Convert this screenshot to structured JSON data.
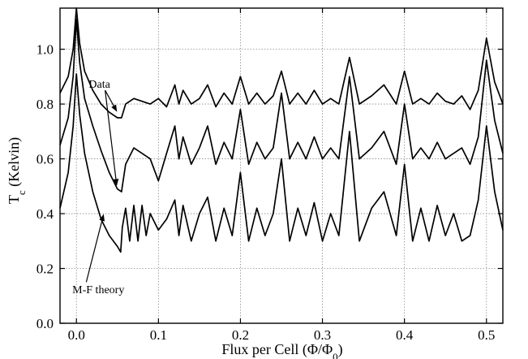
{
  "chart_data": {
    "type": "line",
    "xlabel_main": "Flux per Cell (",
    "xlabel_phi": "Φ/Φ",
    "xlabel_sub": "0",
    "xlabel_close": ")",
    "ylabel_main": "T",
    "ylabel_sub": "c",
    "ylabel_rest": " (Kelvin)",
    "xlim": [
      -0.02,
      0.52
    ],
    "ylim": [
      0.0,
      1.15
    ],
    "grid": true,
    "x_ticks": [
      {
        "value": 0.0,
        "label": "0.0"
      },
      {
        "value": 0.1,
        "label": "0.1"
      },
      {
        "value": 0.2,
        "label": "0.2"
      },
      {
        "value": 0.3,
        "label": "0.3"
      },
      {
        "value": 0.4,
        "label": "0.4"
      },
      {
        "value": 0.5,
        "label": "0.5"
      }
    ],
    "y_ticks": [
      {
        "value": 0.0,
        "label": "0.0"
      },
      {
        "value": 0.2,
        "label": "0.2"
      },
      {
        "value": 0.4,
        "label": "0.4"
      },
      {
        "value": 0.6,
        "label": "0.6"
      },
      {
        "value": 0.8,
        "label": "0.8"
      },
      {
        "value": 1.0,
        "label": "1.0"
      }
    ],
    "series": [
      {
        "peak": 1.15,
        "baseline": 0.8,
        "points": [
          [
            -0.02,
            0.84
          ],
          [
            -0.01,
            0.9
          ],
          [
            -0.004,
            1.0
          ],
          [
            0.0,
            1.15
          ],
          [
            0.004,
            1.02
          ],
          [
            0.01,
            0.92
          ],
          [
            0.02,
            0.85
          ],
          [
            0.03,
            0.8
          ],
          [
            0.04,
            0.77
          ],
          [
            0.05,
            0.75
          ],
          [
            0.055,
            0.75
          ],
          [
            0.06,
            0.8
          ],
          [
            0.07,
            0.82
          ],
          [
            0.08,
            0.81
          ],
          [
            0.09,
            0.8
          ],
          [
            0.1,
            0.82
          ],
          [
            0.11,
            0.79
          ],
          [
            0.12,
            0.87
          ],
          [
            0.125,
            0.8
          ],
          [
            0.13,
            0.85
          ],
          [
            0.14,
            0.8
          ],
          [
            0.15,
            0.82
          ],
          [
            0.16,
            0.87
          ],
          [
            0.17,
            0.79
          ],
          [
            0.18,
            0.84
          ],
          [
            0.19,
            0.8
          ],
          [
            0.2,
            0.9
          ],
          [
            0.21,
            0.8
          ],
          [
            0.22,
            0.84
          ],
          [
            0.23,
            0.8
          ],
          [
            0.24,
            0.83
          ],
          [
            0.25,
            0.92
          ],
          [
            0.26,
            0.8
          ],
          [
            0.27,
            0.84
          ],
          [
            0.28,
            0.8
          ],
          [
            0.29,
            0.85
          ],
          [
            0.3,
            0.8
          ],
          [
            0.31,
            0.82
          ],
          [
            0.32,
            0.8
          ],
          [
            0.333,
            0.97
          ],
          [
            0.345,
            0.8
          ],
          [
            0.36,
            0.83
          ],
          [
            0.375,
            0.87
          ],
          [
            0.39,
            0.8
          ],
          [
            0.4,
            0.92
          ],
          [
            0.41,
            0.8
          ],
          [
            0.42,
            0.82
          ],
          [
            0.43,
            0.8
          ],
          [
            0.44,
            0.84
          ],
          [
            0.45,
            0.81
          ],
          [
            0.46,
            0.8
          ],
          [
            0.47,
            0.83
          ],
          [
            0.48,
            0.78
          ],
          [
            0.49,
            0.85
          ],
          [
            0.5,
            1.04
          ],
          [
            0.51,
            0.88
          ],
          [
            0.52,
            0.8
          ]
        ]
      },
      {
        "peak": 1.11,
        "baseline": 0.62,
        "points": [
          [
            -0.02,
            0.65
          ],
          [
            -0.01,
            0.75
          ],
          [
            -0.004,
            0.9
          ],
          [
            0.0,
            1.11
          ],
          [
            0.004,
            0.95
          ],
          [
            0.01,
            0.82
          ],
          [
            0.02,
            0.72
          ],
          [
            0.03,
            0.63
          ],
          [
            0.04,
            0.55
          ],
          [
            0.05,
            0.49
          ],
          [
            0.055,
            0.48
          ],
          [
            0.06,
            0.58
          ],
          [
            0.07,
            0.64
          ],
          [
            0.08,
            0.62
          ],
          [
            0.09,
            0.6
          ],
          [
            0.1,
            0.52
          ],
          [
            0.11,
            0.62
          ],
          [
            0.12,
            0.72
          ],
          [
            0.125,
            0.6
          ],
          [
            0.13,
            0.68
          ],
          [
            0.14,
            0.58
          ],
          [
            0.15,
            0.64
          ],
          [
            0.16,
            0.72
          ],
          [
            0.17,
            0.58
          ],
          [
            0.18,
            0.66
          ],
          [
            0.19,
            0.6
          ],
          [
            0.2,
            0.78
          ],
          [
            0.21,
            0.58
          ],
          [
            0.22,
            0.66
          ],
          [
            0.23,
            0.6
          ],
          [
            0.24,
            0.64
          ],
          [
            0.25,
            0.84
          ],
          [
            0.26,
            0.6
          ],
          [
            0.27,
            0.66
          ],
          [
            0.28,
            0.6
          ],
          [
            0.29,
            0.68
          ],
          [
            0.3,
            0.6
          ],
          [
            0.31,
            0.64
          ],
          [
            0.32,
            0.6
          ],
          [
            0.333,
            0.9
          ],
          [
            0.345,
            0.6
          ],
          [
            0.36,
            0.64
          ],
          [
            0.375,
            0.7
          ],
          [
            0.39,
            0.58
          ],
          [
            0.4,
            0.8
          ],
          [
            0.41,
            0.6
          ],
          [
            0.42,
            0.64
          ],
          [
            0.43,
            0.6
          ],
          [
            0.44,
            0.66
          ],
          [
            0.45,
            0.6
          ],
          [
            0.46,
            0.62
          ],
          [
            0.47,
            0.64
          ],
          [
            0.48,
            0.58
          ],
          [
            0.49,
            0.68
          ],
          [
            0.5,
            0.96
          ],
          [
            0.51,
            0.74
          ],
          [
            0.52,
            0.62
          ]
        ]
      },
      {
        "peak": 0.91,
        "baseline": 0.34,
        "points": [
          [
            -0.02,
            0.42
          ],
          [
            -0.01,
            0.55
          ],
          [
            -0.004,
            0.72
          ],
          [
            0.0,
            0.91
          ],
          [
            0.004,
            0.76
          ],
          [
            0.01,
            0.62
          ],
          [
            0.02,
            0.48
          ],
          [
            0.03,
            0.38
          ],
          [
            0.04,
            0.32
          ],
          [
            0.05,
            0.28
          ],
          [
            0.054,
            0.26
          ],
          [
            0.056,
            0.35
          ],
          [
            0.06,
            0.42
          ],
          [
            0.065,
            0.3
          ],
          [
            0.07,
            0.43
          ],
          [
            0.075,
            0.3
          ],
          [
            0.08,
            0.43
          ],
          [
            0.085,
            0.32
          ],
          [
            0.09,
            0.4
          ],
          [
            0.1,
            0.34
          ],
          [
            0.11,
            0.38
          ],
          [
            0.12,
            0.45
          ],
          [
            0.125,
            0.32
          ],
          [
            0.13,
            0.43
          ],
          [
            0.14,
            0.3
          ],
          [
            0.15,
            0.4
          ],
          [
            0.16,
            0.46
          ],
          [
            0.17,
            0.3
          ],
          [
            0.18,
            0.42
          ],
          [
            0.19,
            0.32
          ],
          [
            0.2,
            0.55
          ],
          [
            0.21,
            0.3
          ],
          [
            0.22,
            0.42
          ],
          [
            0.23,
            0.32
          ],
          [
            0.24,
            0.4
          ],
          [
            0.25,
            0.6
          ],
          [
            0.26,
            0.3
          ],
          [
            0.27,
            0.42
          ],
          [
            0.28,
            0.32
          ],
          [
            0.29,
            0.44
          ],
          [
            0.3,
            0.3
          ],
          [
            0.31,
            0.4
          ],
          [
            0.32,
            0.32
          ],
          [
            0.333,
            0.7
          ],
          [
            0.345,
            0.3
          ],
          [
            0.36,
            0.42
          ],
          [
            0.375,
            0.48
          ],
          [
            0.39,
            0.32
          ],
          [
            0.4,
            0.58
          ],
          [
            0.41,
            0.3
          ],
          [
            0.42,
            0.42
          ],
          [
            0.43,
            0.3
          ],
          [
            0.44,
            0.43
          ],
          [
            0.45,
            0.32
          ],
          [
            0.46,
            0.4
          ],
          [
            0.47,
            0.3
          ],
          [
            0.48,
            0.32
          ],
          [
            0.49,
            0.45
          ],
          [
            0.5,
            0.72
          ],
          [
            0.51,
            0.48
          ],
          [
            0.52,
            0.34
          ]
        ]
      }
    ],
    "annotations": [
      {
        "text": "Data",
        "targets": [
          [
            0.055,
            0.78
          ],
          [
            0.055,
            0.51
          ]
        ]
      },
      {
        "text": "M-F theory",
        "targets": [
          [
            0.035,
            0.39
          ]
        ]
      }
    ]
  }
}
